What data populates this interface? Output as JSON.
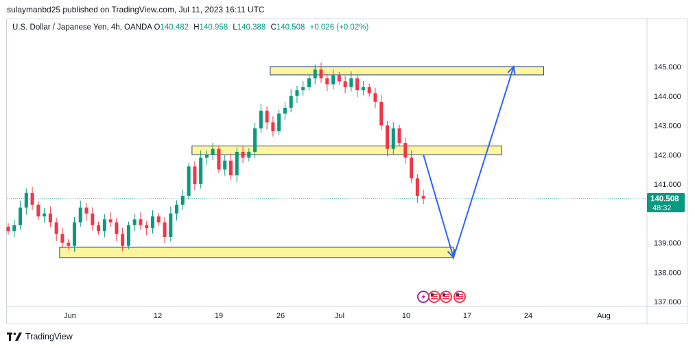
{
  "header": {
    "published": "sulaymanbd25 published on TradingView.com, Jul 11, 2023 16:11 UTC"
  },
  "legend": {
    "symbol": "U.S. Dollar / Japanese Yen, 4h, OANDA",
    "open_label": "O",
    "open": "140.482",
    "high_label": "H",
    "high": "140.958",
    "low_label": "L",
    "low": "140.388",
    "close_label": "C",
    "close": "140.508",
    "change": "+0.026 (+0.02%)"
  },
  "price_badge": {
    "price": "140.508",
    "countdown": "48:32"
  },
  "footer": {
    "brand": "TradingView"
  },
  "colors": {
    "up": "#089981",
    "down": "#f23645",
    "zone_fill": "#fff59d",
    "zone_stroke": "#1e3a8a",
    "arrow": "#2962ff",
    "badge": "#089981"
  },
  "icons": [
    "tradingview-logo-icon",
    "lightning-event-icon",
    "us-flag-event-icon"
  ],
  "chart_data": {
    "type": "candlestick",
    "title": "U.S. Dollar / Japanese Yen, 4h, OANDA",
    "y_ticks": [
      "145.000",
      "144.000",
      "143.000",
      "142.000",
      "141.000",
      "139.000",
      "138.000",
      "137.000"
    ],
    "x_ticks": [
      "Jun",
      "12",
      "19",
      "26",
      "Jul",
      "10",
      "17",
      "24",
      "Aug"
    ],
    "ylim": [
      136.7,
      145.9
    ],
    "current_price": 140.508,
    "path_close": [
      139.4,
      139.6,
      140.2,
      140.7,
      140.3,
      139.9,
      140.0,
      139.7,
      139.3,
      139.0,
      138.9,
      139.7,
      140.2,
      140.0,
      139.6,
      139.4,
      139.8,
      139.7,
      139.3,
      138.9,
      139.6,
      139.8,
      139.6,
      139.5,
      139.9,
      139.7,
      139.2,
      140.0,
      140.3,
      140.6,
      141.6,
      141.0,
      141.9,
      142.0,
      142.2,
      141.5,
      141.8,
      141.3,
      142.1,
      141.9,
      142.1,
      142.9,
      143.5,
      143.1,
      142.8,
      143.4,
      143.6,
      144.0,
      144.2,
      144.3,
      144.6,
      144.9,
      144.6,
      144.4,
      144.7,
      144.5,
      144.3,
      144.6,
      144.2,
      144.3,
      144.1,
      143.8,
      143.0,
      142.2,
      142.9,
      142.4,
      141.9,
      141.2,
      140.6,
      140.5
    ],
    "zones": [
      {
        "name": "resistance",
        "start_index": 44,
        "end_date_index": 89,
        "top": 145.0,
        "bottom": 144.72
      },
      {
        "name": "mid",
        "start_index": 31,
        "end_date_index": 82,
        "top": 142.3,
        "bottom": 142.0
      },
      {
        "name": "support",
        "start_index": 9,
        "end_date_index": 74,
        "top": 138.85,
        "bottom": 138.5
      }
    ],
    "projection": [
      {
        "date_index": 69,
        "price": 142.0
      },
      {
        "date_index": 74,
        "price": 138.5
      },
      {
        "date_index": 84,
        "price": 145.0
      }
    ],
    "events": [
      "lightning",
      "us-flag",
      "us-flag",
      "us-flag"
    ]
  }
}
